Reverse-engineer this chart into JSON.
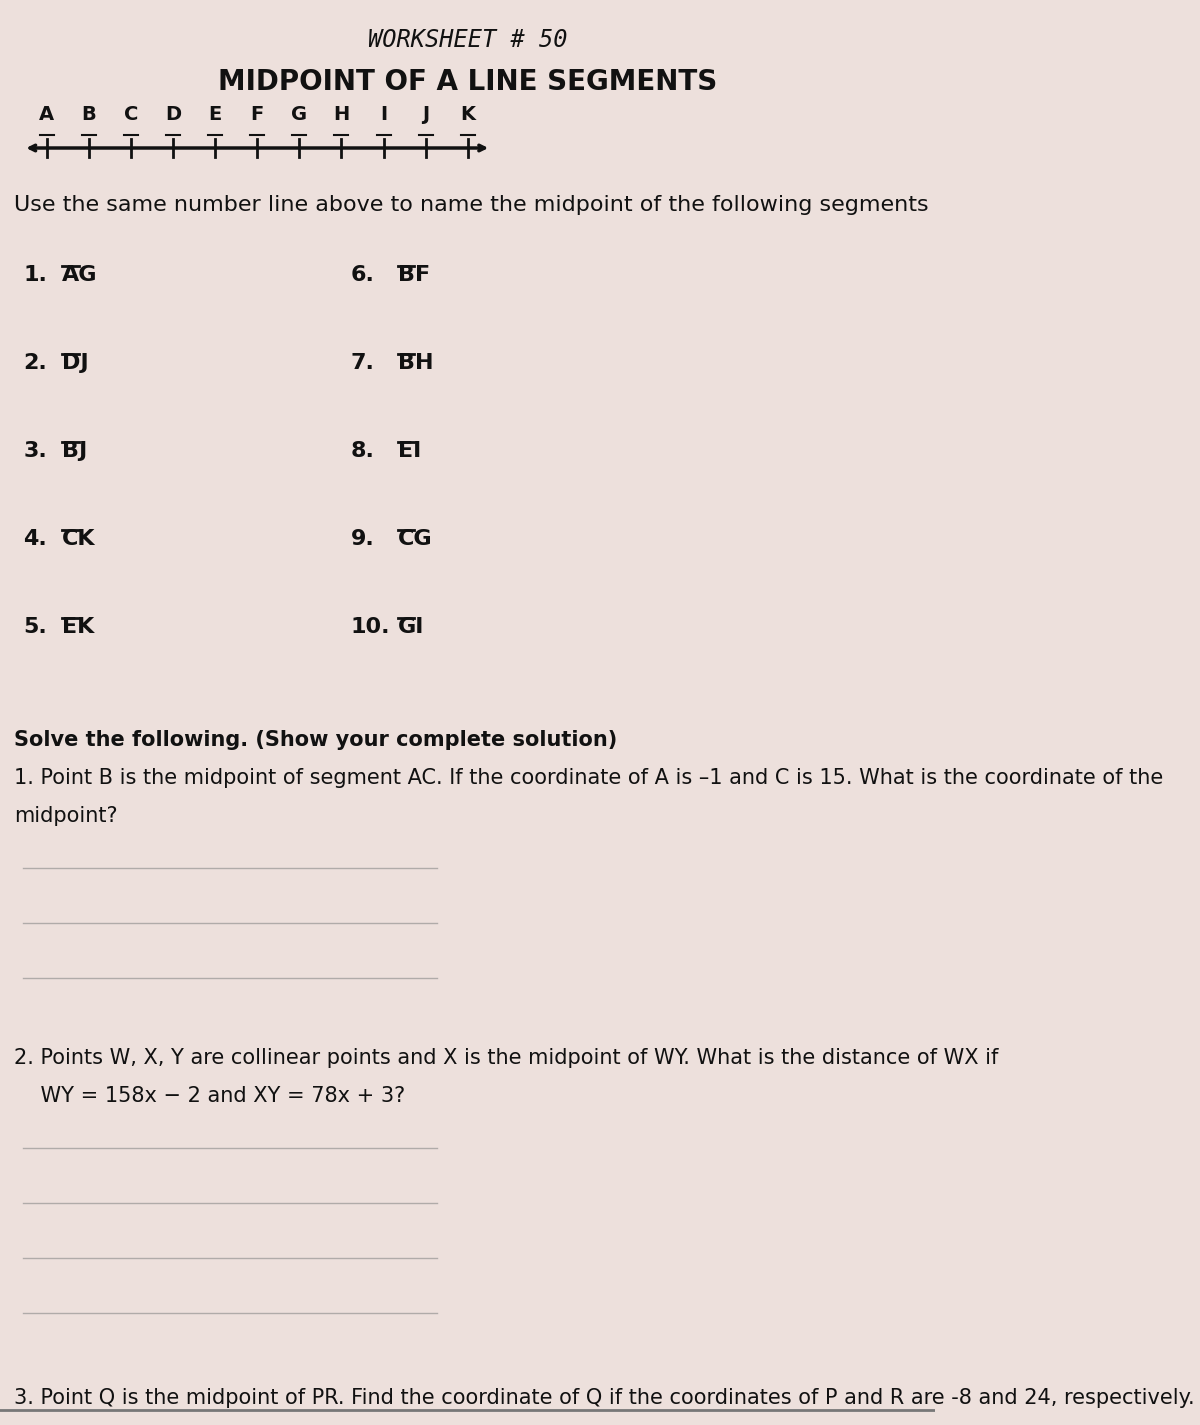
{
  "title_line1": "WORKSHEET # 50",
  "title_line2": "MIDPOINT OF A LINE SEGMENTS",
  "number_line_letters": [
    "A",
    "B",
    "C",
    "D",
    "E",
    "F",
    "G",
    "H",
    "I",
    "J",
    "K"
  ],
  "instruction": "Use the same number line above to name the midpoint of the following segments",
  "left_nums": [
    "1.",
    "2.",
    "3.",
    "4.",
    "5."
  ],
  "left_segs": [
    "AG",
    "DJ",
    "BJ",
    "CK",
    "EK"
  ],
  "right_nums": [
    "6.",
    "7.",
    "8.",
    "9.",
    "10."
  ],
  "right_segs": [
    "BF",
    "BH",
    "EI",
    "CG",
    "GI"
  ],
  "solve_header": "Solve the following. (Show your complete solution)",
  "p1_line1": "1. Point B is the midpoint of segment AC. If the coordinate of A is –1 and C is 15. What is the coordinate of the",
  "p1_line2": "midpoint?",
  "p2_line1": "2. Points W, X, Y are collinear points and X is the midpoint of WY. What is the distance of WX if",
  "p2_line2": "    WY = 158x − 2 and XY = 78x + 3?",
  "p3": "3. Point Q is the midpoint of PR. Find the coordinate of Q if the coordinates of P and R are -8 and 24, respectively.",
  "bg_color": "#ede0dc",
  "text_color": "#111111",
  "line_color": "#888888"
}
